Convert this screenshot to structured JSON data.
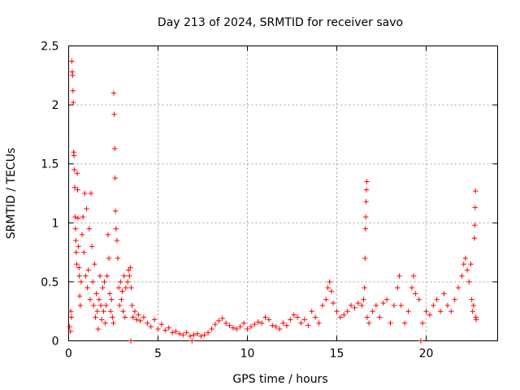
{
  "chart_data": {
    "type": "scatter",
    "title": "Day 213 of 2024, SRMTID for receiver savo",
    "xlabel": "GPS time / hours",
    "ylabel": "SRMTID / TECUs",
    "xlim": [
      0,
      24
    ],
    "ylim": [
      0,
      2.5
    ],
    "x_ticks": [
      0,
      5,
      10,
      15,
      20
    ],
    "x_tick_labels": [
      "0",
      "5",
      "10",
      "15",
      "20"
    ],
    "y_ticks": [
      0,
      0.5,
      1,
      1.5,
      2,
      2.5
    ],
    "y_tick_labels": [
      "0",
      "0.5",
      "1",
      "1.5",
      "2",
      "2.5"
    ],
    "grid": true,
    "marker": "plus",
    "color": "#ff0000",
    "series": [
      {
        "name": "SRMTID",
        "points": [
          [
            0.05,
            0.12
          ],
          [
            0.1,
            0.08
          ],
          [
            0.12,
            0.25
          ],
          [
            0.15,
            0.2
          ],
          [
            0.18,
            2.37
          ],
          [
            0.2,
            2.28
          ],
          [
            0.22,
            2.25
          ],
          [
            0.24,
            2.12
          ],
          [
            0.26,
            2.02
          ],
          [
            0.28,
            1.6
          ],
          [
            0.3,
            1.57
          ],
          [
            0.32,
            1.45
          ],
          [
            0.34,
            1.3
          ],
          [
            0.36,
            1.05
          ],
          [
            0.38,
            0.95
          ],
          [
            0.4,
            0.85
          ],
          [
            0.42,
            0.75
          ],
          [
            0.45,
            0.65
          ],
          [
            0.48,
            1.42
          ],
          [
            0.5,
            1.28
          ],
          [
            0.52,
            1.04
          ],
          [
            0.55,
            0.8
          ],
          [
            0.58,
            0.62
          ],
          [
            0.6,
            0.55
          ],
          [
            0.62,
            0.38
          ],
          [
            0.65,
            0.3
          ],
          [
            0.7,
            0.5
          ],
          [
            0.75,
            0.9
          ],
          [
            0.8,
            1.05
          ],
          [
            0.85,
            0.75
          ],
          [
            0.9,
            1.25
          ],
          [
            0.95,
            0.55
          ],
          [
            1.0,
            1.12
          ],
          [
            1.05,
            0.45
          ],
          [
            1.1,
            0.6
          ],
          [
            1.15,
            0.95
          ],
          [
            1.2,
            0.35
          ],
          [
            1.25,
            1.25
          ],
          [
            1.3,
            0.8
          ],
          [
            1.35,
            0.5
          ],
          [
            1.4,
            0.3
          ],
          [
            1.45,
            0.65
          ],
          [
            1.5,
            0.2
          ],
          [
            1.55,
            0.4
          ],
          [
            1.6,
            0.25
          ],
          [
            1.65,
            0.1
          ],
          [
            1.7,
            0.35
          ],
          [
            1.75,
            0.55
          ],
          [
            1.8,
            0.3
          ],
          [
            1.85,
            0.18
          ],
          [
            1.9,
            0.45
          ],
          [
            1.95,
            0.25
          ],
          [
            2.0,
            0.5
          ],
          [
            2.05,
            0.15
          ],
          [
            2.1,
            0.3
          ],
          [
            2.15,
            0.55
          ],
          [
            2.2,
            0.9
          ],
          [
            2.25,
            0.7
          ],
          [
            2.3,
            0.4
          ],
          [
            2.35,
            0.25
          ],
          [
            2.4,
            0.35
          ],
          [
            2.45,
            0.2
          ],
          [
            2.5,
            0.15
          ],
          [
            2.52,
            2.1
          ],
          [
            2.55,
            1.92
          ],
          [
            2.58,
            1.63
          ],
          [
            2.6,
            1.38
          ],
          [
            2.62,
            1.1
          ],
          [
            2.65,
            0.95
          ],
          [
            2.7,
            0.85
          ],
          [
            2.75,
            0.7
          ],
          [
            2.8,
            0.45
          ],
          [
            2.85,
            0.3
          ],
          [
            2.9,
            0.5
          ],
          [
            2.95,
            0.35
          ],
          [
            3.0,
            0.42
          ],
          [
            3.05,
            0.25
          ],
          [
            3.1,
            0.55
          ],
          [
            3.15,
            0.2
          ],
          [
            3.2,
            0.45
          ],
          [
            3.3,
            0.5
          ],
          [
            3.35,
            0.6
          ],
          [
            3.4,
            0.55
          ],
          [
            3.45,
            0.62
          ],
          [
            3.48,
            0.0
          ],
          [
            3.5,
            0.45
          ],
          [
            3.55,
            0.3
          ],
          [
            3.6,
            0.2
          ],
          [
            3.7,
            0.25
          ],
          [
            3.8,
            0.18
          ],
          [
            3.9,
            0.22
          ],
          [
            4.0,
            0.17
          ],
          [
            4.2,
            0.2
          ],
          [
            4.4,
            0.15
          ],
          [
            4.6,
            0.12
          ],
          [
            4.8,
            0.18
          ],
          [
            5.0,
            0.1
          ],
          [
            5.2,
            0.14
          ],
          [
            5.4,
            0.09
          ],
          [
            5.6,
            0.11
          ],
          [
            5.8,
            0.07
          ],
          [
            6.0,
            0.08
          ],
          [
            6.2,
            0.06
          ],
          [
            6.4,
            0.05
          ],
          [
            6.6,
            0.07
          ],
          [
            6.8,
            0.04
          ],
          [
            6.9,
            0.0
          ],
          [
            7.0,
            0.05
          ],
          [
            7.2,
            0.06
          ],
          [
            7.4,
            0.04
          ],
          [
            7.6,
            0.05
          ],
          [
            7.8,
            0.07
          ],
          [
            8.0,
            0.1
          ],
          [
            8.2,
            0.14
          ],
          [
            8.4,
            0.17
          ],
          [
            8.6,
            0.19
          ],
          [
            8.8,
            0.15
          ],
          [
            9.0,
            0.13
          ],
          [
            9.2,
            0.11
          ],
          [
            9.4,
            0.1
          ],
          [
            9.6,
            0.12
          ],
          [
            9.8,
            0.15
          ],
          [
            10.0,
            0.1
          ],
          [
            10.2,
            0.12
          ],
          [
            10.4,
            0.14
          ],
          [
            10.6,
            0.16
          ],
          [
            10.8,
            0.15
          ],
          [
            11.0,
            0.2
          ],
          [
            11.2,
            0.18
          ],
          [
            11.4,
            0.13
          ],
          [
            11.6,
            0.12
          ],
          [
            11.8,
            0.1
          ],
          [
            12.0,
            0.15
          ],
          [
            12.2,
            0.13
          ],
          [
            12.4,
            0.18
          ],
          [
            12.6,
            0.22
          ],
          [
            12.8,
            0.2
          ],
          [
            13.0,
            0.15
          ],
          [
            13.2,
            0.18
          ],
          [
            13.4,
            0.13
          ],
          [
            13.6,
            0.25
          ],
          [
            13.8,
            0.2
          ],
          [
            14.0,
            0.15
          ],
          [
            14.2,
            0.3
          ],
          [
            14.4,
            0.35
          ],
          [
            14.5,
            0.45
          ],
          [
            14.6,
            0.5
          ],
          [
            14.7,
            0.42
          ],
          [
            14.8,
            0.32
          ],
          [
            15.0,
            0.25
          ],
          [
            15.2,
            0.2
          ],
          [
            15.4,
            0.22
          ],
          [
            15.6,
            0.25
          ],
          [
            15.8,
            0.3
          ],
          [
            16.0,
            0.28
          ],
          [
            16.2,
            0.32
          ],
          [
            16.4,
            0.3
          ],
          [
            16.5,
            0.35
          ],
          [
            16.55,
            0.45
          ],
          [
            16.58,
            0.7
          ],
          [
            16.6,
            0.95
          ],
          [
            16.62,
            1.05
          ],
          [
            16.64,
            1.18
          ],
          [
            16.66,
            1.28
          ],
          [
            16.68,
            1.35
          ],
          [
            16.7,
            0.2
          ],
          [
            16.8,
            0.15
          ],
          [
            17.0,
            0.25
          ],
          [
            17.2,
            0.3
          ],
          [
            17.4,
            0.2
          ],
          [
            17.6,
            0.32
          ],
          [
            17.8,
            0.35
          ],
          [
            18.0,
            0.15
          ],
          [
            18.2,
            0.3
          ],
          [
            18.4,
            0.45
          ],
          [
            18.5,
            0.55
          ],
          [
            18.6,
            0.3
          ],
          [
            18.8,
            0.15
          ],
          [
            19.0,
            0.25
          ],
          [
            19.2,
            0.45
          ],
          [
            19.3,
            0.55
          ],
          [
            19.4,
            0.4
          ],
          [
            19.6,
            0.35
          ],
          [
            19.7,
            0.0
          ],
          [
            19.8,
            0.15
          ],
          [
            20.0,
            0.25
          ],
          [
            20.2,
            0.22
          ],
          [
            20.4,
            0.3
          ],
          [
            20.6,
            0.35
          ],
          [
            20.8,
            0.25
          ],
          [
            21.0,
            0.4
          ],
          [
            21.2,
            0.3
          ],
          [
            21.4,
            0.25
          ],
          [
            21.6,
            0.35
          ],
          [
            21.8,
            0.45
          ],
          [
            22.0,
            0.55
          ],
          [
            22.1,
            0.65
          ],
          [
            22.2,
            0.7
          ],
          [
            22.3,
            0.6
          ],
          [
            22.4,
            0.5
          ],
          [
            22.5,
            0.65
          ],
          [
            22.55,
            0.35
          ],
          [
            22.6,
            0.25
          ],
          [
            22.65,
            0.3
          ],
          [
            22.7,
            0.87
          ],
          [
            22.72,
            0.98
          ],
          [
            22.74,
            1.13
          ],
          [
            22.76,
            1.27
          ],
          [
            22.78,
            0.2
          ],
          [
            22.8,
            0.18
          ]
        ]
      }
    ]
  }
}
